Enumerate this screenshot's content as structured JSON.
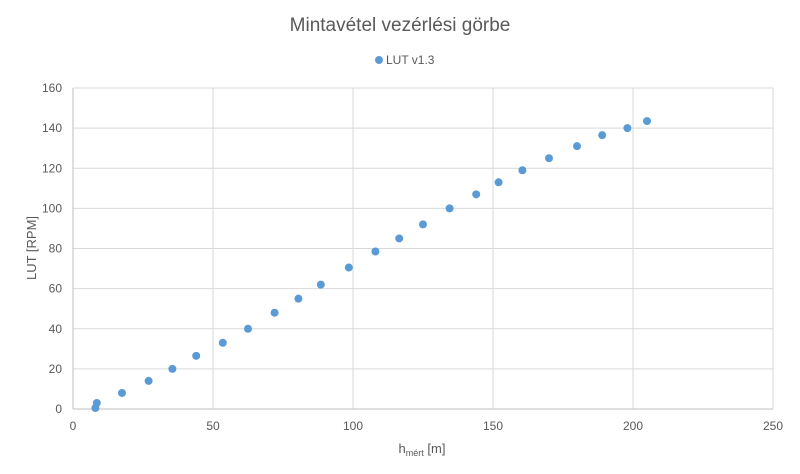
{
  "chart_data": {
    "type": "scatter",
    "title": "Mintavétel vezérlési görbe",
    "xlabel_main": "h",
    "xlabel_sub": "mért",
    "xlabel_unit": " [m]",
    "ylabel": "LUT [RPM]",
    "xlim": [
      0,
      250
    ],
    "ylim": [
      0,
      160
    ],
    "x_ticks": [
      0,
      50,
      100,
      150,
      200,
      250
    ],
    "y_ticks": [
      0,
      20,
      40,
      60,
      80,
      100,
      120,
      140,
      160
    ],
    "grid": "major-both",
    "legend": "top-center",
    "series": [
      {
        "name": "LUT v1.3",
        "color": "#5b9bd5",
        "x": [
          8,
          8.5,
          17.5,
          27,
          35.5,
          44,
          53.5,
          62.5,
          72,
          80.5,
          88.5,
          98.5,
          108,
          116.5,
          125,
          134.5,
          144,
          152,
          160.5,
          170,
          180,
          189,
          198,
          205
        ],
        "y": [
          0.5,
          3,
          8,
          14,
          20,
          26.5,
          33,
          40,
          48,
          55,
          62,
          70.5,
          78.5,
          85,
          92,
          100,
          107,
          113,
          119,
          125,
          131,
          136.5,
          140,
          143.5
        ]
      }
    ]
  }
}
